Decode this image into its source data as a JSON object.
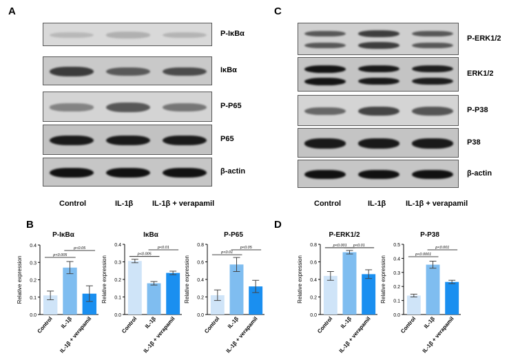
{
  "panels": {
    "a": "A",
    "b": "B",
    "c": "C",
    "d": "D"
  },
  "lane_labels": [
    "Control",
    "IL-1β",
    "IL-1β + verapamil"
  ],
  "blots_a": [
    {
      "label": "P-IκBα",
      "bg": "#d9d9d9",
      "band": "#9a9a9a",
      "intensity": [
        0.25,
        0.45,
        0.35
      ]
    },
    {
      "label": "IκBα",
      "bg": "#c9c9c9",
      "band": "#333333",
      "intensity": [
        0.9,
        0.6,
        0.75
      ]
    },
    {
      "label": "P-P65",
      "bg": "#d4d4d4",
      "band": "#4a4a4a",
      "intensity": [
        0.35,
        0.85,
        0.5
      ]
    },
    {
      "label": "P65",
      "bg": "#c2c2c2",
      "band": "#151515",
      "intensity": [
        0.95,
        0.95,
        0.95
      ]
    },
    {
      "label": "β-actin",
      "bg": "#c6c6c6",
      "band": "#111111",
      "intensity": [
        1.0,
        1.0,
        1.0
      ]
    }
  ],
  "blots_c": [
    {
      "label": "P-ERK1/2",
      "bg": "#cfcfcf",
      "band": "#2e2e2e",
      "double": true,
      "intensity": [
        0.6,
        0.85,
        0.6
      ]
    },
    {
      "label": "ERK1/2",
      "bg": "#c4c4c4",
      "band": "#141414",
      "double": true,
      "intensity": [
        1.0,
        0.95,
        0.9
      ]
    },
    {
      "label": "P-P38",
      "bg": "#d4d4d4",
      "band": "#2a2a2a",
      "double": false,
      "intensity": [
        0.45,
        0.75,
        0.6
      ]
    },
    {
      "label": "P38",
      "bg": "#c4c4c4",
      "band": "#141414",
      "double": false,
      "intensity": [
        0.95,
        0.95,
        0.95
      ]
    },
    {
      "label": "β-actin",
      "bg": "#c6c6c6",
      "band": "#111111",
      "double": false,
      "intensity": [
        1.0,
        1.0,
        1.0
      ]
    }
  ],
  "colors": [
    "#cfe4f8",
    "#7fbdf0",
    "#1a8ff0"
  ],
  "chart_data": [
    {
      "type": "bar",
      "title": "P-IκBα",
      "ylabel": "Relative expression",
      "categories": [
        "Control",
        "IL-1β",
        "IL-1β + verapamil"
      ],
      "values": [
        0.11,
        0.27,
        0.12
      ],
      "errors": [
        0.025,
        0.035,
        0.045
      ],
      "ylim": [
        0,
        0.4
      ],
      "yticks": [
        "0.0",
        "0.1",
        "0.2",
        "0.3",
        "0.4"
      ],
      "annotations": [
        {
          "from": 0,
          "to": 1,
          "text": "p<0.005"
        },
        {
          "from": 1,
          "to": 2,
          "text": "p<0.05"
        }
      ]
    },
    {
      "type": "bar",
      "title": "IκBα",
      "ylabel": "Relative expression",
      "categories": [
        "Control",
        "IL-1β",
        "IL-1β + verapamil"
      ],
      "values": [
        0.305,
        0.178,
        0.237
      ],
      "errors": [
        0.01,
        0.01,
        0.01
      ],
      "ylim": [
        0,
        0.4
      ],
      "yticks": [
        "0.0",
        "0.1",
        "0.2",
        "0.3",
        "0.4"
      ],
      "annotations": [
        {
          "from": 0,
          "to": 1,
          "text": "p<0.005"
        },
        {
          "from": 1,
          "to": 2,
          "text": "p<0.01"
        }
      ]
    },
    {
      "type": "bar",
      "title": "P-P65",
      "ylabel": "Relative expression",
      "categories": [
        "Control",
        "IL-1β",
        "IL-1β + verapamil"
      ],
      "values": [
        0.22,
        0.57,
        0.32
      ],
      "errors": [
        0.06,
        0.08,
        0.07
      ],
      "ylim": [
        0,
        0.8
      ],
      "yticks": [
        "0.0",
        "0.2",
        "0.4",
        "0.6",
        "0.8"
      ],
      "annotations": [
        {
          "from": 0,
          "to": 1,
          "text": "p<0.01"
        },
        {
          "from": 1,
          "to": 2,
          "text": "p<0.05"
        }
      ]
    },
    {
      "type": "bar",
      "title": "P-ERK1/2",
      "ylabel": "Relative expression",
      "categories": [
        "Control",
        "IL-1β",
        "IL-1β + verapamil"
      ],
      "values": [
        0.44,
        0.71,
        0.46
      ],
      "errors": [
        0.05,
        0.02,
        0.05
      ],
      "ylim": [
        0,
        0.8
      ],
      "yticks": [
        "0.0",
        "0.2",
        "0.4",
        "0.6",
        "0.8"
      ],
      "annotations": [
        {
          "from": 0,
          "to": 1,
          "text": "p<0.001"
        },
        {
          "from": 1,
          "to": 2,
          "text": "p<0.01"
        }
      ]
    },
    {
      "type": "bar",
      "title": "P-P38",
      "ylabel": "Relative expression",
      "categories": [
        "Control",
        "IL-1β",
        "IL-1β + verapamil"
      ],
      "values": [
        0.135,
        0.355,
        0.232
      ],
      "errors": [
        0.01,
        0.025,
        0.012
      ],
      "ylim": [
        0,
        0.5
      ],
      "yticks": [
        "0.0",
        "0.1",
        "0.2",
        "0.3",
        "0.4",
        "0.5"
      ],
      "annotations": [
        {
          "from": 0,
          "to": 1,
          "text": "p<0.0001"
        },
        {
          "from": 1,
          "to": 2,
          "text": "p<0.001"
        }
      ]
    }
  ]
}
